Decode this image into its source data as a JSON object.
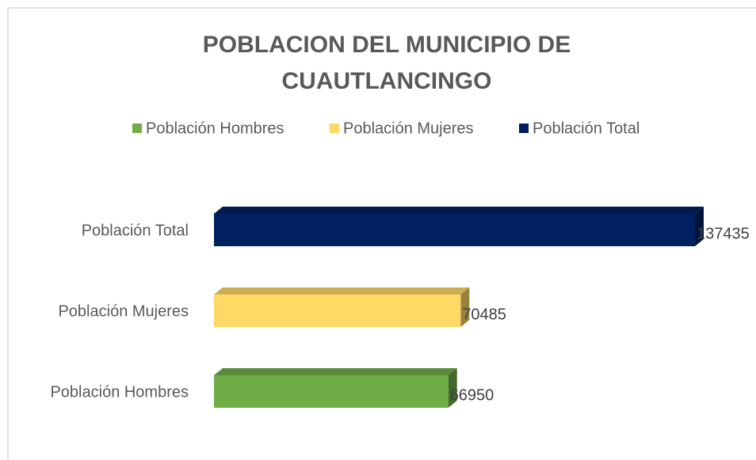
{
  "chart_data": {
    "type": "bar",
    "orientation": "horizontal",
    "three_d": true,
    "title": "POBLACION DEL MUNICIPIO DE CUAUTLANCINGO",
    "categories": [
      "Población Hombres",
      "Población Mujeres",
      "Población Total"
    ],
    "series": [
      {
        "name": "Población Hombres",
        "color": "#70ad47",
        "values": [
          66950,
          null,
          null
        ]
      },
      {
        "name": "Población Mujeres",
        "color": "#ffd966",
        "values": [
          null,
          70485,
          null
        ]
      },
      {
        "name": "Población Total",
        "color": "#002060",
        "values": [
          null,
          null,
          137435
        ]
      }
    ],
    "legend": "top",
    "grid": false
  }
}
